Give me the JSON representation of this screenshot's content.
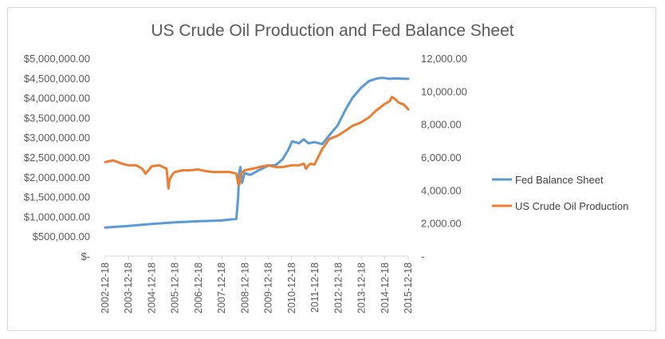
{
  "chart_data": {
    "type": "line",
    "title": "US Crude Oil Production and Fed Balance Sheet",
    "x_tick_labels": [
      "2002-12-18",
      "2003-12-18",
      "2004-12-18",
      "2005-12-18",
      "2006-12-18",
      "2007-12-18",
      "2008-12-18",
      "2009-12-18",
      "2010-12-18",
      "2011-12-18",
      "2012-12-18",
      "2013-12-18",
      "2014-12-18",
      "2015-12-18"
    ],
    "y_left": {
      "tick_labels": [
        "$-",
        "$500,000.00",
        "$1,000,000.00",
        "$1,500,000.00",
        "$2,000,000.00",
        "$2,500,000.00",
        "$3,000,000.00",
        "$3,500,000.00",
        "$4,000,000.00",
        "$4,500,000.00",
        "$5,000,000.00"
      ],
      "range": [
        0,
        5000000
      ]
    },
    "y_right": {
      "tick_labels": [
        "-",
        "2,000.00",
        "4,000.00",
        "6,000.00",
        "8,000.00",
        "10,000.00",
        "12,000.00"
      ],
      "range": [
        0,
        12000
      ]
    },
    "legend_position": "right",
    "grid": false,
    "series": [
      {
        "name": "Fed Balance Sheet",
        "axis": "left",
        "color": "#5b9bd5",
        "x": [
          2002.96,
          2003.96,
          2004.96,
          2005.96,
          2006.96,
          2007.96,
          2008.6,
          2008.68,
          2008.72,
          2008.78,
          2008.85,
          2008.96,
          2009.2,
          2009.5,
          2009.96,
          2010.3,
          2010.6,
          2010.85,
          2011.0,
          2011.3,
          2011.5,
          2011.7,
          2011.96,
          2012.3,
          2012.6,
          2012.96,
          2013.3,
          2013.6,
          2013.96,
          2014.3,
          2014.6,
          2014.8,
          2014.96,
          2015.2,
          2015.5,
          2015.8,
          2016.0
        ],
        "y": [
          720000,
          760000,
          810000,
          850000,
          880000,
          900000,
          940000,
          1500000,
          2100000,
          2250000,
          1850000,
          2100000,
          2050000,
          2150000,
          2280000,
          2300000,
          2450000,
          2700000,
          2900000,
          2850000,
          2950000,
          2850000,
          2880000,
          2830000,
          3050000,
          3300000,
          3700000,
          4000000,
          4250000,
          4420000,
          4480000,
          4500000,
          4500000,
          4480000,
          4490000,
          4480000,
          4480000
        ]
      },
      {
        "name": "US Crude Oil Production",
        "axis": "right",
        "color": "#ed7d31",
        "x": [
          2002.96,
          2003.3,
          2003.7,
          2003.96,
          2004.3,
          2004.55,
          2004.7,
          2004.96,
          2005.3,
          2005.6,
          2005.68,
          2005.72,
          2005.85,
          2005.96,
          2006.3,
          2006.6,
          2006.96,
          2007.3,
          2007.6,
          2007.96,
          2008.3,
          2008.6,
          2008.68,
          2008.72,
          2008.8,
          2008.96,
          2009.3,
          2009.6,
          2009.96,
          2010.3,
          2010.6,
          2010.96,
          2011.3,
          2011.5,
          2011.6,
          2011.7,
          2011.8,
          2011.96,
          2012.3,
          2012.6,
          2012.96,
          2013.3,
          2013.6,
          2013.96,
          2014.3,
          2014.6,
          2014.96,
          2015.2,
          2015.3,
          2015.45,
          2015.6,
          2015.8,
          2016.0
        ],
        "y": [
          5700,
          5800,
          5600,
          5500,
          5500,
          5300,
          5000,
          5450,
          5500,
          5300,
          4100,
          4600,
          4950,
          5100,
          5200,
          5200,
          5250,
          5150,
          5100,
          5100,
          5100,
          5000,
          4400,
          4300,
          5000,
          5200,
          5300,
          5400,
          5500,
          5400,
          5400,
          5500,
          5500,
          5600,
          5300,
          5500,
          5600,
          5550,
          6500,
          7100,
          7300,
          7600,
          7900,
          8100,
          8400,
          8800,
          9200,
          9400,
          9650,
          9500,
          9300,
          9200,
          8900
        ]
      }
    ]
  }
}
